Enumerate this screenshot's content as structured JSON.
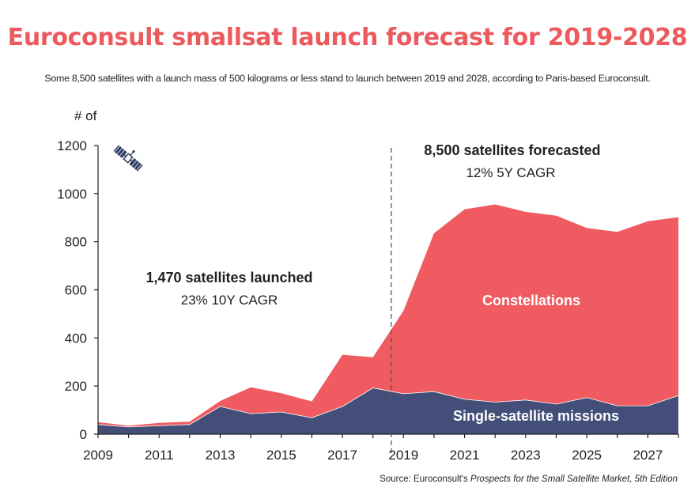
{
  "header": {
    "title": "Euroconsult smallsat launch forecast for 2019-2028",
    "subtitle": "Some 8,500 satellites with a launch mass of 500 kilograms or less stand to launch between 2019 and 2028, according to Paris-based Euroconsult."
  },
  "source": {
    "prefix": "Source: Euroconsult's ",
    "title": "Prospects for the Small Satellite Market, 5th Edition"
  },
  "colors": {
    "accent": "#ec5a5e",
    "constellations": "#ef5b61",
    "single": "#434f78",
    "text": "#231f20"
  },
  "chart_data": {
    "type": "area",
    "stacked": true,
    "title": "Euroconsult smallsat launch forecast for 2019-2028",
    "ylabel": "# of",
    "xlabel": "",
    "ylim": [
      0,
      1200
    ],
    "xlim": [
      2009,
      2028
    ],
    "y_ticks": [
      0,
      200,
      400,
      600,
      800,
      1000,
      1200
    ],
    "x_ticks": [
      2009,
      2011,
      2013,
      2015,
      2017,
      2019,
      2021,
      2023,
      2025,
      2027
    ],
    "grid": false,
    "forecast_divider_year": 2018.6,
    "x": [
      2009,
      2010,
      2011,
      2012,
      2013,
      2014,
      2015,
      2016,
      2017,
      2018,
      2019,
      2020,
      2021,
      2022,
      2023,
      2024,
      2025,
      2026,
      2027,
      2028
    ],
    "series": [
      {
        "name": "Single-satellite missions",
        "values": [
          40,
          30,
          35,
          40,
          115,
          85,
          92,
          68,
          115,
          192,
          168,
          177,
          145,
          133,
          142,
          125,
          152,
          118,
          118,
          160
        ]
      },
      {
        "name": "Constellations",
        "values": [
          10,
          5,
          12,
          12,
          23,
          110,
          78,
          68,
          215,
          128,
          345,
          658,
          790,
          822,
          782,
          783,
          705,
          723,
          767,
          742
        ]
      }
    ],
    "series_labels": {
      "single": "Single-satellite missions",
      "constellations": "Constellations"
    },
    "annotations": {
      "historic_bold": "1,470 satellites launched",
      "historic_sub": "23% 10Y CAGR",
      "forecast_bold": "8,500 satellites forecasted",
      "forecast_sub": "12% 5Y CAGR"
    }
  }
}
